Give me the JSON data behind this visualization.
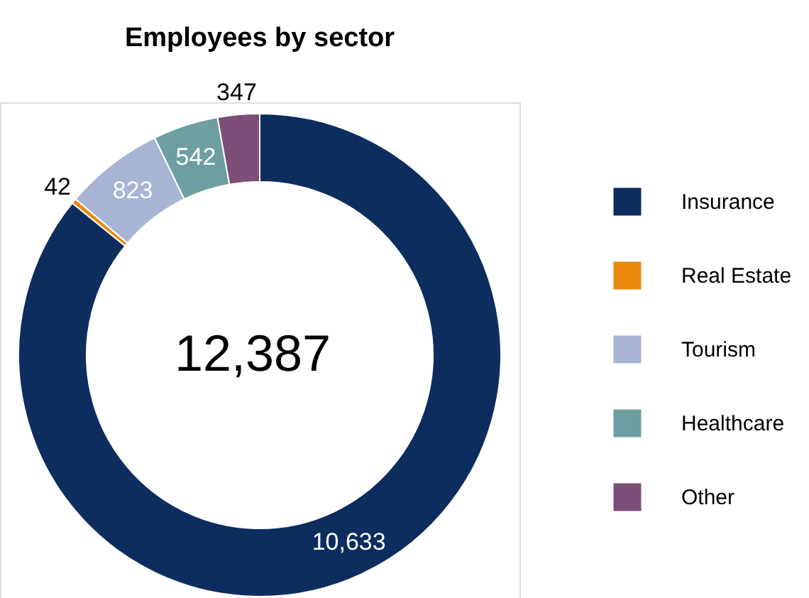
{
  "chart_data": {
    "type": "donut",
    "title": "Employees by sector",
    "categories": [
      "Insurance",
      "Real Estate",
      "Tourism",
      "Healthcare",
      "Other"
    ],
    "values": [
      10633,
      42,
      823,
      542,
      347
    ],
    "value_labels": [
      "10,633",
      "42",
      "823",
      "542",
      "347"
    ],
    "colors": [
      "#0d2d5e",
      "#e8890c",
      "#a7b4d4",
      "#6e9fa0",
      "#7d4e78"
    ],
    "annotations": [
      "12,387"
    ],
    "legend": "right"
  }
}
